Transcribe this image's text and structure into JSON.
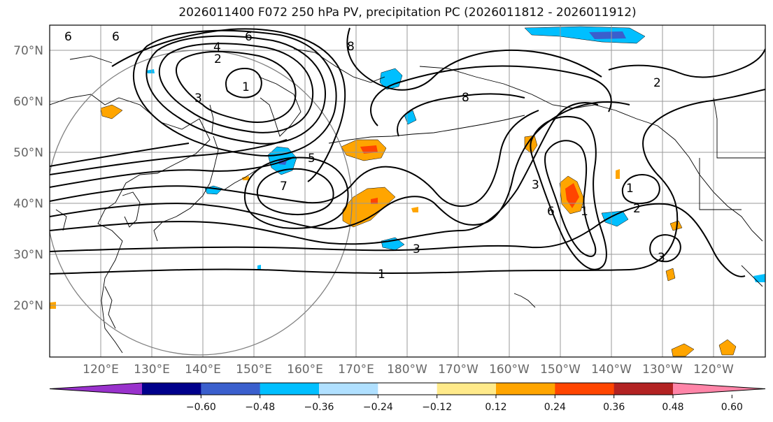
{
  "title": "2026011400 F072 250 hPa PV, precipitation PC (2026011812 - 2026011912)",
  "lat_labels": [
    "70°N",
    "60°N",
    "50°N",
    "40°N",
    "30°N",
    "20°N"
  ],
  "lon_labels": [
    "120°E",
    "130°E",
    "140°E",
    "150°E",
    "160°E",
    "170°E",
    "180°W",
    "170°W",
    "160°W",
    "150°W",
    "140°W",
    "130°W",
    "120°W"
  ],
  "contour_labels": [
    "6",
    "6",
    "4",
    "2",
    "1",
    "3",
    "8",
    "8",
    "5",
    "7",
    "3",
    "6",
    "1",
    "2",
    "1",
    "3",
    "3",
    "1",
    "2",
    "6"
  ],
  "colorbar": {
    "ticks": [
      "−0.60",
      "−0.48",
      "−0.36",
      "−0.24",
      "−0.12",
      "0.12",
      "0.24",
      "0.36",
      "0.48",
      "0.60"
    ],
    "colors": [
      "#9932cc",
      "#00008b",
      "#3a5fcd",
      "#00bfff",
      "#b0e0ff",
      "#ffffff",
      "#ffea8a",
      "#ffa500",
      "#ff4500",
      "#b22222",
      "#ff85a8"
    ]
  },
  "colors": {
    "pv_contour": "#000000",
    "coast": "#000000",
    "grid": "#999999",
    "circle": "#808080"
  }
}
